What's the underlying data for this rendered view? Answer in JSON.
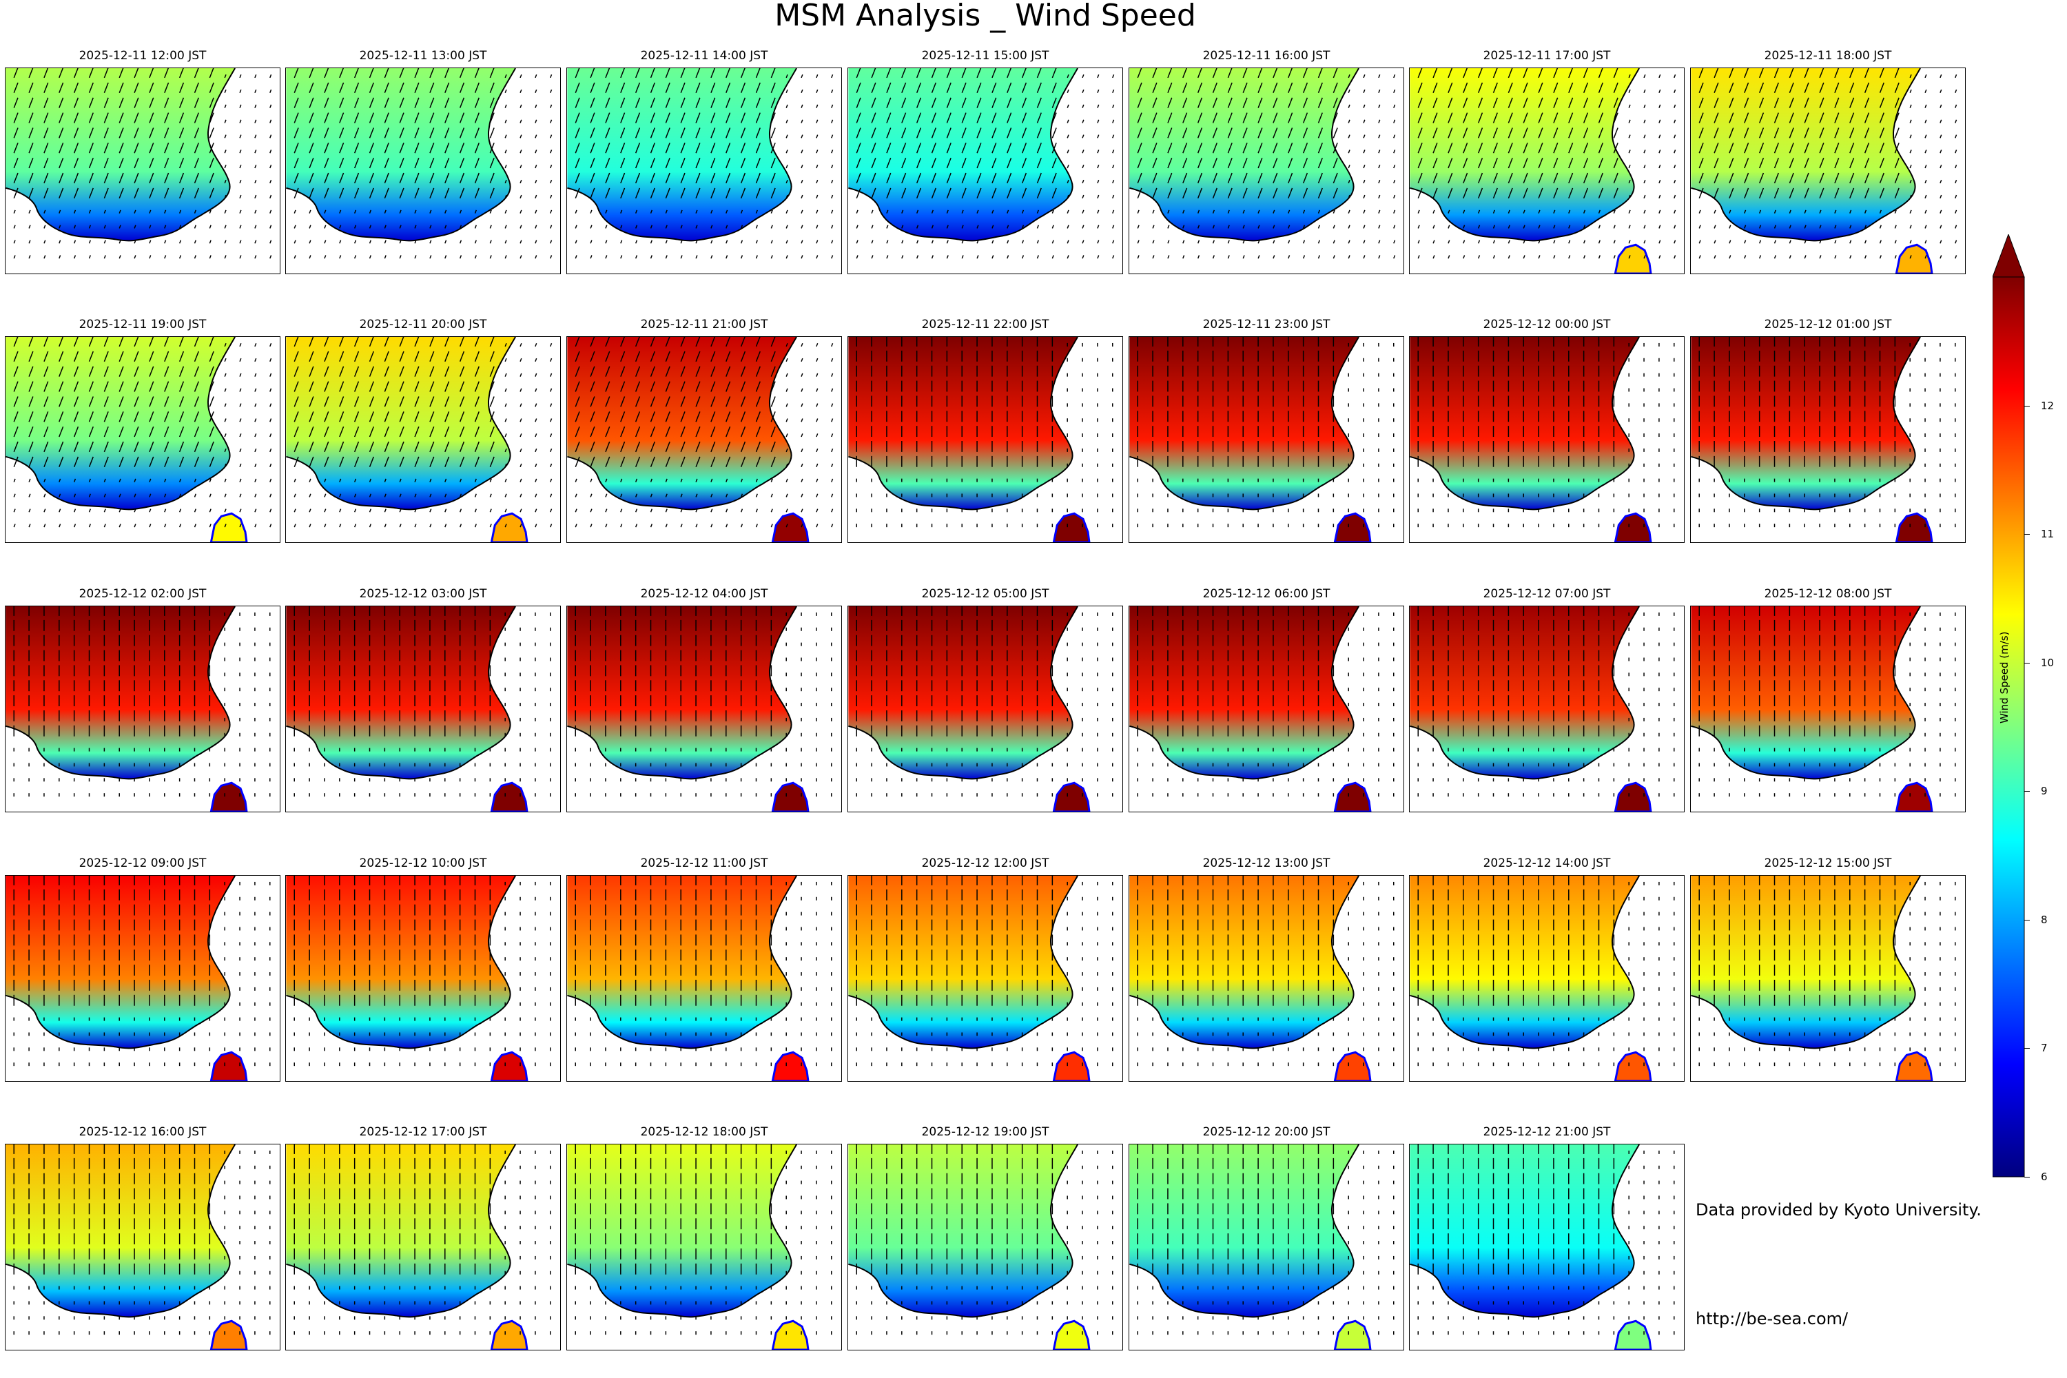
{
  "title": "MSM Analysis _ Wind Speed",
  "credits": {
    "provider": "Data provided by Kyoto University.",
    "url": "http://be-sea.com/"
  },
  "colors": {
    "colormap": [
      "#00007f",
      "#0000ff",
      "#007fff",
      "#00ffff",
      "#7fff7f",
      "#ffff00",
      "#ff7f00",
      "#ff0000",
      "#7f0000"
    ],
    "land": "#ffffff",
    "coast": "#000000"
  },
  "chart_data": {
    "type": "heatmap",
    "title": "MSM Analysis _ Wind Speed",
    "variable": "Wind Speed (m/s)",
    "colorbar": {
      "label": "Wind Speed (m/s)",
      "min": 6,
      "max": 13,
      "extend": "max",
      "ticks": [
        6,
        7,
        8,
        9,
        10,
        11,
        12
      ]
    },
    "grid": {
      "rows": 5,
      "cols": 7
    },
    "panels": [
      {
        "time": "2025-12-11 12:00 JST",
        "level": 0.55
      },
      {
        "time": "2025-12-11 13:00 JST",
        "level": 0.52
      },
      {
        "time": "2025-12-11 14:00 JST",
        "level": 0.48
      },
      {
        "time": "2025-12-11 15:00 JST",
        "level": 0.47
      },
      {
        "time": "2025-12-11 16:00 JST",
        "level": 0.55
      },
      {
        "time": "2025-12-11 17:00 JST",
        "level": 0.62
      },
      {
        "time": "2025-12-11 18:00 JST",
        "level": 0.65
      },
      {
        "time": "2025-12-11 19:00 JST",
        "level": 0.58
      },
      {
        "time": "2025-12-11 20:00 JST",
        "level": 0.66
      },
      {
        "time": "2025-12-11 21:00 JST",
        "level": 0.93
      },
      {
        "time": "2025-12-11 22:00 JST",
        "level": 1.0
      },
      {
        "time": "2025-12-11 23:00 JST",
        "level": 1.0
      },
      {
        "time": "2025-12-12 00:00 JST",
        "level": 1.0
      },
      {
        "time": "2025-12-12 01:00 JST",
        "level": 1.0
      },
      {
        "time": "2025-12-12 02:00 JST",
        "level": 1.0
      },
      {
        "time": "2025-12-12 03:00 JST",
        "level": 1.0
      },
      {
        "time": "2025-12-12 04:00 JST",
        "level": 1.0
      },
      {
        "time": "2025-12-12 05:00 JST",
        "level": 1.0
      },
      {
        "time": "2025-12-12 06:00 JST",
        "level": 1.0
      },
      {
        "time": "2025-12-12 07:00 JST",
        "level": 0.97
      },
      {
        "time": "2025-12-12 08:00 JST",
        "level": 0.92
      },
      {
        "time": "2025-12-12 09:00 JST",
        "level": 0.88
      },
      {
        "time": "2025-12-12 10:00 JST",
        "level": 0.86
      },
      {
        "time": "2025-12-12 11:00 JST",
        "level": 0.82
      },
      {
        "time": "2025-12-12 12:00 JST",
        "level": 0.78
      },
      {
        "time": "2025-12-12 13:00 JST",
        "level": 0.76
      },
      {
        "time": "2025-12-12 14:00 JST",
        "level": 0.74
      },
      {
        "time": "2025-12-12 15:00 JST",
        "level": 0.72
      },
      {
        "time": "2025-12-12 16:00 JST",
        "level": 0.7
      },
      {
        "time": "2025-12-12 17:00 JST",
        "level": 0.66
      },
      {
        "time": "2025-12-12 18:00 JST",
        "level": 0.6
      },
      {
        "time": "2025-12-12 19:00 JST",
        "level": 0.56
      },
      {
        "time": "2025-12-12 20:00 JST",
        "level": 0.52
      },
      {
        "time": "2025-12-12 21:00 JST",
        "level": 0.45
      }
    ]
  }
}
